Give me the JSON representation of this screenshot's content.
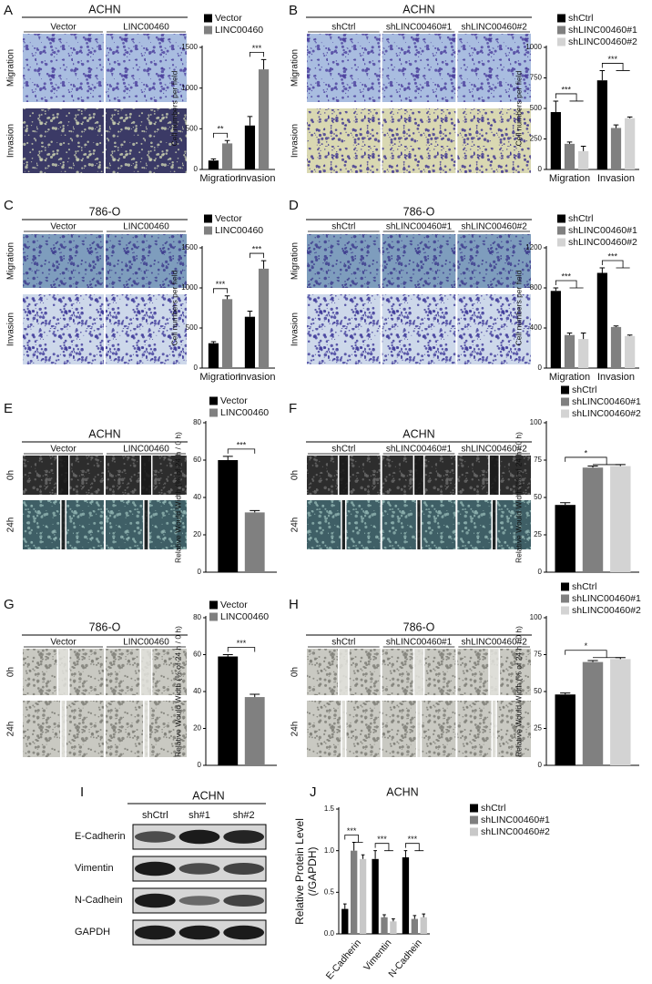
{
  "panels": [
    {
      "letter": "A",
      "cell_line": "ACHN",
      "columns": [
        "Vector",
        "LINC00460"
      ],
      "rows": [
        "Migration",
        "Invasion"
      ]
    },
    {
      "letter": "B",
      "cell_line": "ACHN",
      "columns": [
        "shCtrl",
        "shLINC00460#1",
        "shLINC00460#2"
      ],
      "rows": [
        "Migration",
        "Invasion"
      ]
    },
    {
      "letter": "C",
      "cell_line": "786-O",
      "columns": [
        "Vector",
        "LINC00460"
      ],
      "rows": [
        "Migration",
        "Invasion"
      ]
    },
    {
      "letter": "D",
      "cell_line": "786-O",
      "columns": [
        "shCtrl",
        "shLINC00460#1",
        "shLINC00460#2"
      ],
      "rows": [
        "Migration",
        "Invasion"
      ]
    },
    {
      "letter": "E",
      "cell_line": "ACHN",
      "columns": [
        "Vector",
        "LINC00460"
      ],
      "rows": [
        "0h",
        "24h"
      ]
    },
    {
      "letter": "F",
      "cell_line": "ACHN",
      "columns": [
        "shCtrl",
        "shLINC00460#1",
        "shLINC00460#2"
      ],
      "rows": [
        "0h",
        "24h"
      ]
    },
    {
      "letter": "G",
      "cell_line": "786-O",
      "columns": [
        "Vector",
        "LINC00460"
      ],
      "rows": [
        "0h",
        "24h"
      ]
    },
    {
      "letter": "H",
      "cell_line": "786-O",
      "columns": [
        "shCtrl",
        "shLINC00460#1",
        "shLINC00460#2"
      ],
      "rows": [
        "0h",
        "24h"
      ]
    }
  ],
  "western": {
    "letter": "I",
    "title": "ACHN",
    "columns": [
      "shCtrl",
      "sh#1",
      "sh#2"
    ],
    "rows": [
      "E-Cadherin",
      "Vimentin",
      "N-Cadhein",
      "GAPDH"
    ]
  },
  "chart_data": [
    {
      "type": "bar",
      "ylabel": "Cell numbers per field",
      "categories": [
        "Migration",
        "Invasion"
      ],
      "series": [
        {
          "name": "Vector",
          "color": "#000000",
          "values": [
            110,
            540
          ],
          "errors": [
            20,
            110
          ]
        },
        {
          "name": "LINC00460",
          "color": "#808080",
          "values": [
            320,
            1230
          ],
          "errors": [
            35,
            120
          ]
        }
      ],
      "ylim": [
        0,
        1500
      ],
      "yticks": [
        0,
        500,
        1000,
        1500
      ],
      "annotations": [
        "**",
        "***"
      ]
    },
    {
      "type": "bar",
      "ylabel": "Cell numbers per field",
      "categories": [
        "Migration",
        "Invasion"
      ],
      "series": [
        {
          "name": "shCtrl",
          "color": "#000000",
          "values": [
            470,
            730
          ],
          "errors": [
            90,
            80
          ]
        },
        {
          "name": "shLINC00460#1",
          "color": "#808080",
          "values": [
            210,
            340
          ],
          "errors": [
            15,
            25
          ]
        },
        {
          "name": "shLINC00460#2",
          "color": "#d3d3d3",
          "values": [
            150,
            420
          ],
          "errors": [
            40,
            10
          ]
        }
      ],
      "ylim": [
        0,
        1000
      ],
      "yticks": [
        0,
        250,
        500,
        750,
        1000
      ],
      "annotations": [
        "***",
        "***"
      ]
    },
    {
      "type": "bar",
      "ylabel": "Cell numbers per field",
      "categories": [
        "Migration",
        "Invasion"
      ],
      "series": [
        {
          "name": "Vector",
          "color": "#000000",
          "values": [
            310,
            640
          ],
          "errors": [
            20,
            70
          ]
        },
        {
          "name": "LINC00460",
          "color": "#808080",
          "values": [
            860,
            1240
          ],
          "errors": [
            40,
            100
          ]
        }
      ],
      "ylim": [
        0,
        1500
      ],
      "yticks": [
        0,
        500,
        1000,
        1500
      ],
      "annotations": [
        "***",
        "***"
      ]
    },
    {
      "type": "bar",
      "ylabel": "Cell numbers per field",
      "categories": [
        "Migration",
        "Invasion"
      ],
      "series": [
        {
          "name": "shCtrl",
          "color": "#000000",
          "values": [
            770,
            950
          ],
          "errors": [
            30,
            50
          ]
        },
        {
          "name": "shLINC00460#1",
          "color": "#808080",
          "values": [
            330,
            410
          ],
          "errors": [
            20,
            10
          ]
        },
        {
          "name": "shLINC00460#2",
          "color": "#d3d3d3",
          "values": [
            290,
            320
          ],
          "errors": [
            60,
            10
          ]
        }
      ],
      "ylim": [
        0,
        1200
      ],
      "yticks": [
        0,
        400,
        800,
        1200
      ],
      "annotations": [
        "***",
        "***"
      ]
    },
    {
      "type": "bar",
      "ylabel": "Relative Would Width (% of 24 h / 0 h)",
      "categories": [
        null
      ],
      "series": [
        {
          "name": "Vector",
          "color": "#000000",
          "values": [
            60
          ],
          "errors": [
            2
          ]
        },
        {
          "name": "LINC00460",
          "color": "#808080",
          "values": [
            32
          ],
          "errors": [
            1
          ]
        }
      ],
      "ylim": [
        0,
        80
      ],
      "yticks": [
        0,
        20,
        40,
        60,
        80
      ],
      "annotations": [
        "***"
      ]
    },
    {
      "type": "bar",
      "ylabel": "Relative Would Width (% of 24 h / 0 h)",
      "categories": [
        null
      ],
      "series": [
        {
          "name": "shCtrl",
          "color": "#000000",
          "values": [
            45
          ],
          "errors": [
            1.5
          ]
        },
        {
          "name": "shLINC00460#1",
          "color": "#808080",
          "values": [
            70
          ],
          "errors": [
            1
          ]
        },
        {
          "name": "shLINC00460#2",
          "color": "#d3d3d3",
          "values": [
            71
          ],
          "errors": [
            1
          ]
        }
      ],
      "ylim": [
        0,
        100
      ],
      "yticks": [
        0,
        25,
        50,
        75,
        100
      ],
      "annotations": [
        "*"
      ]
    },
    {
      "type": "bar",
      "ylabel": "Relative Would Width (% of 24 h / 0 h)",
      "categories": [
        null
      ],
      "series": [
        {
          "name": "Vector",
          "color": "#000000",
          "values": [
            59
          ],
          "errors": [
            1
          ]
        },
        {
          "name": "LINC00460",
          "color": "#808080",
          "values": [
            37
          ],
          "errors": [
            1.5
          ]
        }
      ],
      "ylim": [
        0,
        80
      ],
      "yticks": [
        0,
        20,
        40,
        60,
        80
      ],
      "annotations": [
        "***"
      ]
    },
    {
      "type": "bar",
      "ylabel": "Relative Would Width (% of 24 h / 0 h)",
      "categories": [
        null
      ],
      "series": [
        {
          "name": "shCtrl",
          "color": "#000000",
          "values": [
            48
          ],
          "errors": [
            1
          ]
        },
        {
          "name": "shLINC00460#1",
          "color": "#808080",
          "values": [
            70
          ],
          "errors": [
            1
          ]
        },
        {
          "name": "shLINC00460#2",
          "color": "#d3d3d3",
          "values": [
            72
          ],
          "errors": [
            1
          ]
        }
      ],
      "ylim": [
        0,
        100
      ],
      "yticks": [
        0,
        25,
        50,
        75,
        100
      ],
      "annotations": [
        "*"
      ]
    },
    {
      "type": "bar",
      "panel_label": "J",
      "title": "ACHN",
      "ylabel": [
        "Relative Protein Level",
        "(/GAPDH)"
      ],
      "categories": [
        "E-Cadherin",
        "Vimentin",
        "N-Cadhein"
      ],
      "series": [
        {
          "name": "shCtrl",
          "color": "#000000",
          "values": [
            0.3,
            0.9,
            0.92
          ],
          "errors": [
            0.06,
            0.1,
            0.08
          ]
        },
        {
          "name": "shLINC00460#1",
          "color": "#7f7f7f",
          "values": [
            1.0,
            0.2,
            0.18
          ],
          "errors": [
            0.1,
            0.03,
            0.04
          ]
        },
        {
          "name": "shLINC00460#2",
          "color": "#c8c8c8",
          "values": [
            0.9,
            0.15,
            0.2
          ],
          "errors": [
            0.05,
            0.03,
            0.04
          ]
        }
      ],
      "ylim": [
        0,
        1.5
      ],
      "yticks": [
        {
          "value": 0,
          "label": "0.0"
        },
        0.5,
        {
          "value": 1,
          "label": "1.0"
        },
        1.5
      ],
      "annotations": [
        "***",
        "***",
        "***"
      ]
    }
  ]
}
